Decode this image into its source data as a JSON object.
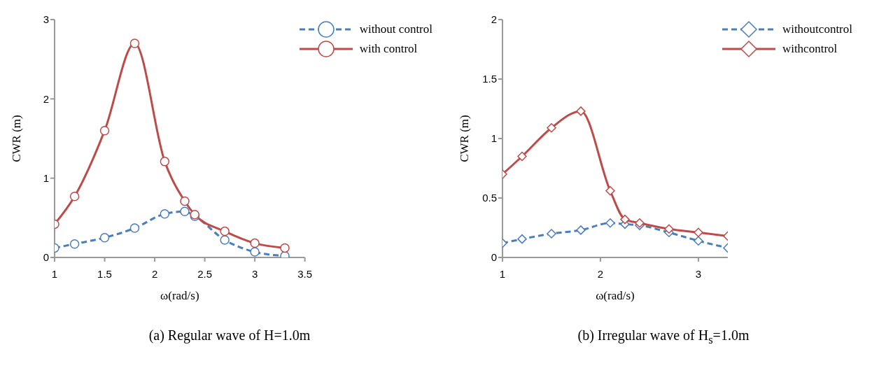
{
  "chart_data": [
    {
      "type": "line",
      "title": "(a) Regular wave of H=1.0m",
      "xlabel": "ω(rad/s)",
      "ylabel": "CWR (m)",
      "xlim": [
        1,
        3.5
      ],
      "xticks": [
        1,
        1.5,
        2,
        2.5,
        3,
        3.5
      ],
      "ylim": [
        0,
        3
      ],
      "yticks": [
        0,
        1,
        2,
        3
      ],
      "grid": false,
      "legend": "top right",
      "marker": "circle",
      "x": [
        1,
        1.2,
        1.5,
        1.8,
        2.1,
        2.3,
        2.4,
        2.7,
        3,
        3.3
      ],
      "series": [
        {
          "name": "without control",
          "color": "#4a7ebb",
          "line_style": "dashed",
          "values": [
            0.12,
            0.17,
            0.25,
            0.37,
            0.55,
            0.58,
            0.52,
            0.22,
            0.07,
            0.02
          ]
        },
        {
          "name": "with control",
          "color": "#be4b48",
          "line_style": "solid",
          "values": [
            0.42,
            0.77,
            1.6,
            2.7,
            1.21,
            0.71,
            0.54,
            0.33,
            0.18,
            0.12
          ]
        }
      ]
    },
    {
      "type": "line",
      "title": "(b) Irregular wave of H$_{s}$=1.0m",
      "xlabel": "ω(rad/s)",
      "ylabel": "CWR (m)",
      "xlim": [
        1,
        3.3
      ],
      "xticks": [
        1,
        2,
        3
      ],
      "ylim": [
        0,
        2
      ],
      "yticks": [
        0,
        0.5,
        1,
        1.5,
        2
      ],
      "grid": false,
      "legend": "top right",
      "marker": "diamond",
      "x": [
        1,
        1.2,
        1.5,
        1.8,
        2.1,
        2.25,
        2.4,
        2.7,
        3,
        3.3
      ],
      "series": [
        {
          "name": "withoutcontrol",
          "color": "#4a7ebb",
          "line_style": "dashed",
          "values": [
            0.12,
            0.155,
            0.2,
            0.23,
            0.29,
            0.28,
            0.27,
            0.21,
            0.14,
            0.08
          ]
        },
        {
          "name": "withcontrol",
          "color": "#be4b48",
          "line_style": "solid",
          "values": [
            0.7,
            0.85,
            1.09,
            1.23,
            0.56,
            0.32,
            0.29,
            0.24,
            0.21,
            0.18
          ]
        }
      ]
    }
  ]
}
